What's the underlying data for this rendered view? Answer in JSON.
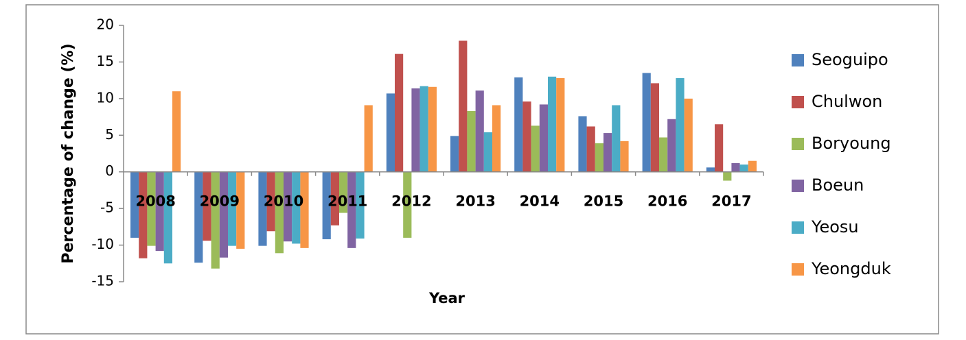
{
  "chart_data": {
    "type": "bar",
    "y_label": "Percentage of change (%)",
    "x_label": "Year",
    "categories": [
      "2008",
      "2009",
      "2010",
      "2011",
      "2012",
      "2013",
      "2014",
      "2015",
      "2016",
      "2017"
    ],
    "series": [
      {
        "name": "Seoguipo",
        "color": "#4f81bd",
        "values": [
          -9,
          -12.4,
          -10.1,
          -9.2,
          10.7,
          4.9,
          12.9,
          7.6,
          13.5,
          0.6
        ]
      },
      {
        "name": "Chulwon",
        "color": "#c0504d",
        "values": [
          -11.8,
          -9.4,
          -8.1,
          -7.3,
          16.1,
          17.9,
          9.6,
          6.2,
          12.1,
          6.5
        ]
      },
      {
        "name": "Boryoung",
        "color": "#9bbb59",
        "values": [
          -10.1,
          -13.2,
          -11.1,
          -5.6,
          -9,
          8.3,
          6.3,
          3.9,
          4.7,
          -1.2
        ]
      },
      {
        "name": "Boeun",
        "color": "#8064a2",
        "values": [
          -10.8,
          -11.7,
          -9.5,
          -10.4,
          11.4,
          11.1,
          9.2,
          5.3,
          7.2,
          1.2
        ]
      },
      {
        "name": "Yeosu",
        "color": "#4bacc6",
        "values": [
          -12.5,
          -10.1,
          -9.8,
          -9.1,
          11.7,
          5.4,
          13,
          9.1,
          12.8,
          1
        ]
      },
      {
        "name": "Yeongduk",
        "color": "#f79646",
        "values": [
          11,
          -10.5,
          -10.4,
          9.1,
          11.6,
          9.1,
          12.8,
          4.2,
          10,
          1.5
        ]
      }
    ],
    "ylim": [
      -15,
      20
    ],
    "yticks": [
      -15,
      -10,
      -5,
      0,
      5,
      10,
      15,
      20
    ],
    "grid": false
  }
}
